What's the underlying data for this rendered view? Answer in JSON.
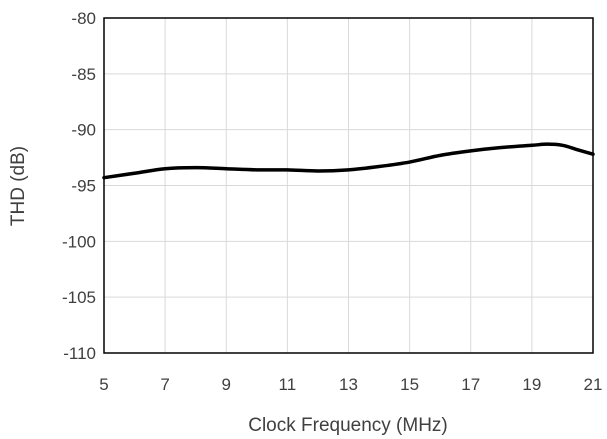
{
  "chart_data": {
    "type": "line",
    "title": "",
    "xlabel": "Clock Frequency (MHz)",
    "ylabel": "THD (dB)",
    "xlim": [
      5,
      21
    ],
    "ylim": [
      -110,
      -80
    ],
    "xticks": [
      5,
      7,
      9,
      11,
      13,
      15,
      17,
      19,
      21
    ],
    "yticks": [
      -80,
      -85,
      -90,
      -95,
      -100,
      -105,
      -110
    ],
    "grid": true,
    "legend": "none",
    "series": [
      {
        "color": "#000000",
        "x": [
          5,
          6,
          7,
          8,
          9,
          10,
          11,
          12,
          13,
          14,
          15,
          16,
          17,
          18,
          19,
          19.5,
          20,
          20.5,
          21
        ],
        "y": [
          -94.3,
          -93.9,
          -93.5,
          -93.4,
          -93.5,
          -93.6,
          -93.6,
          -93.7,
          -93.6,
          -93.3,
          -92.9,
          -92.3,
          -91.9,
          -91.6,
          -91.4,
          -91.3,
          -91.4,
          -91.8,
          -92.2
        ]
      }
    ]
  }
}
